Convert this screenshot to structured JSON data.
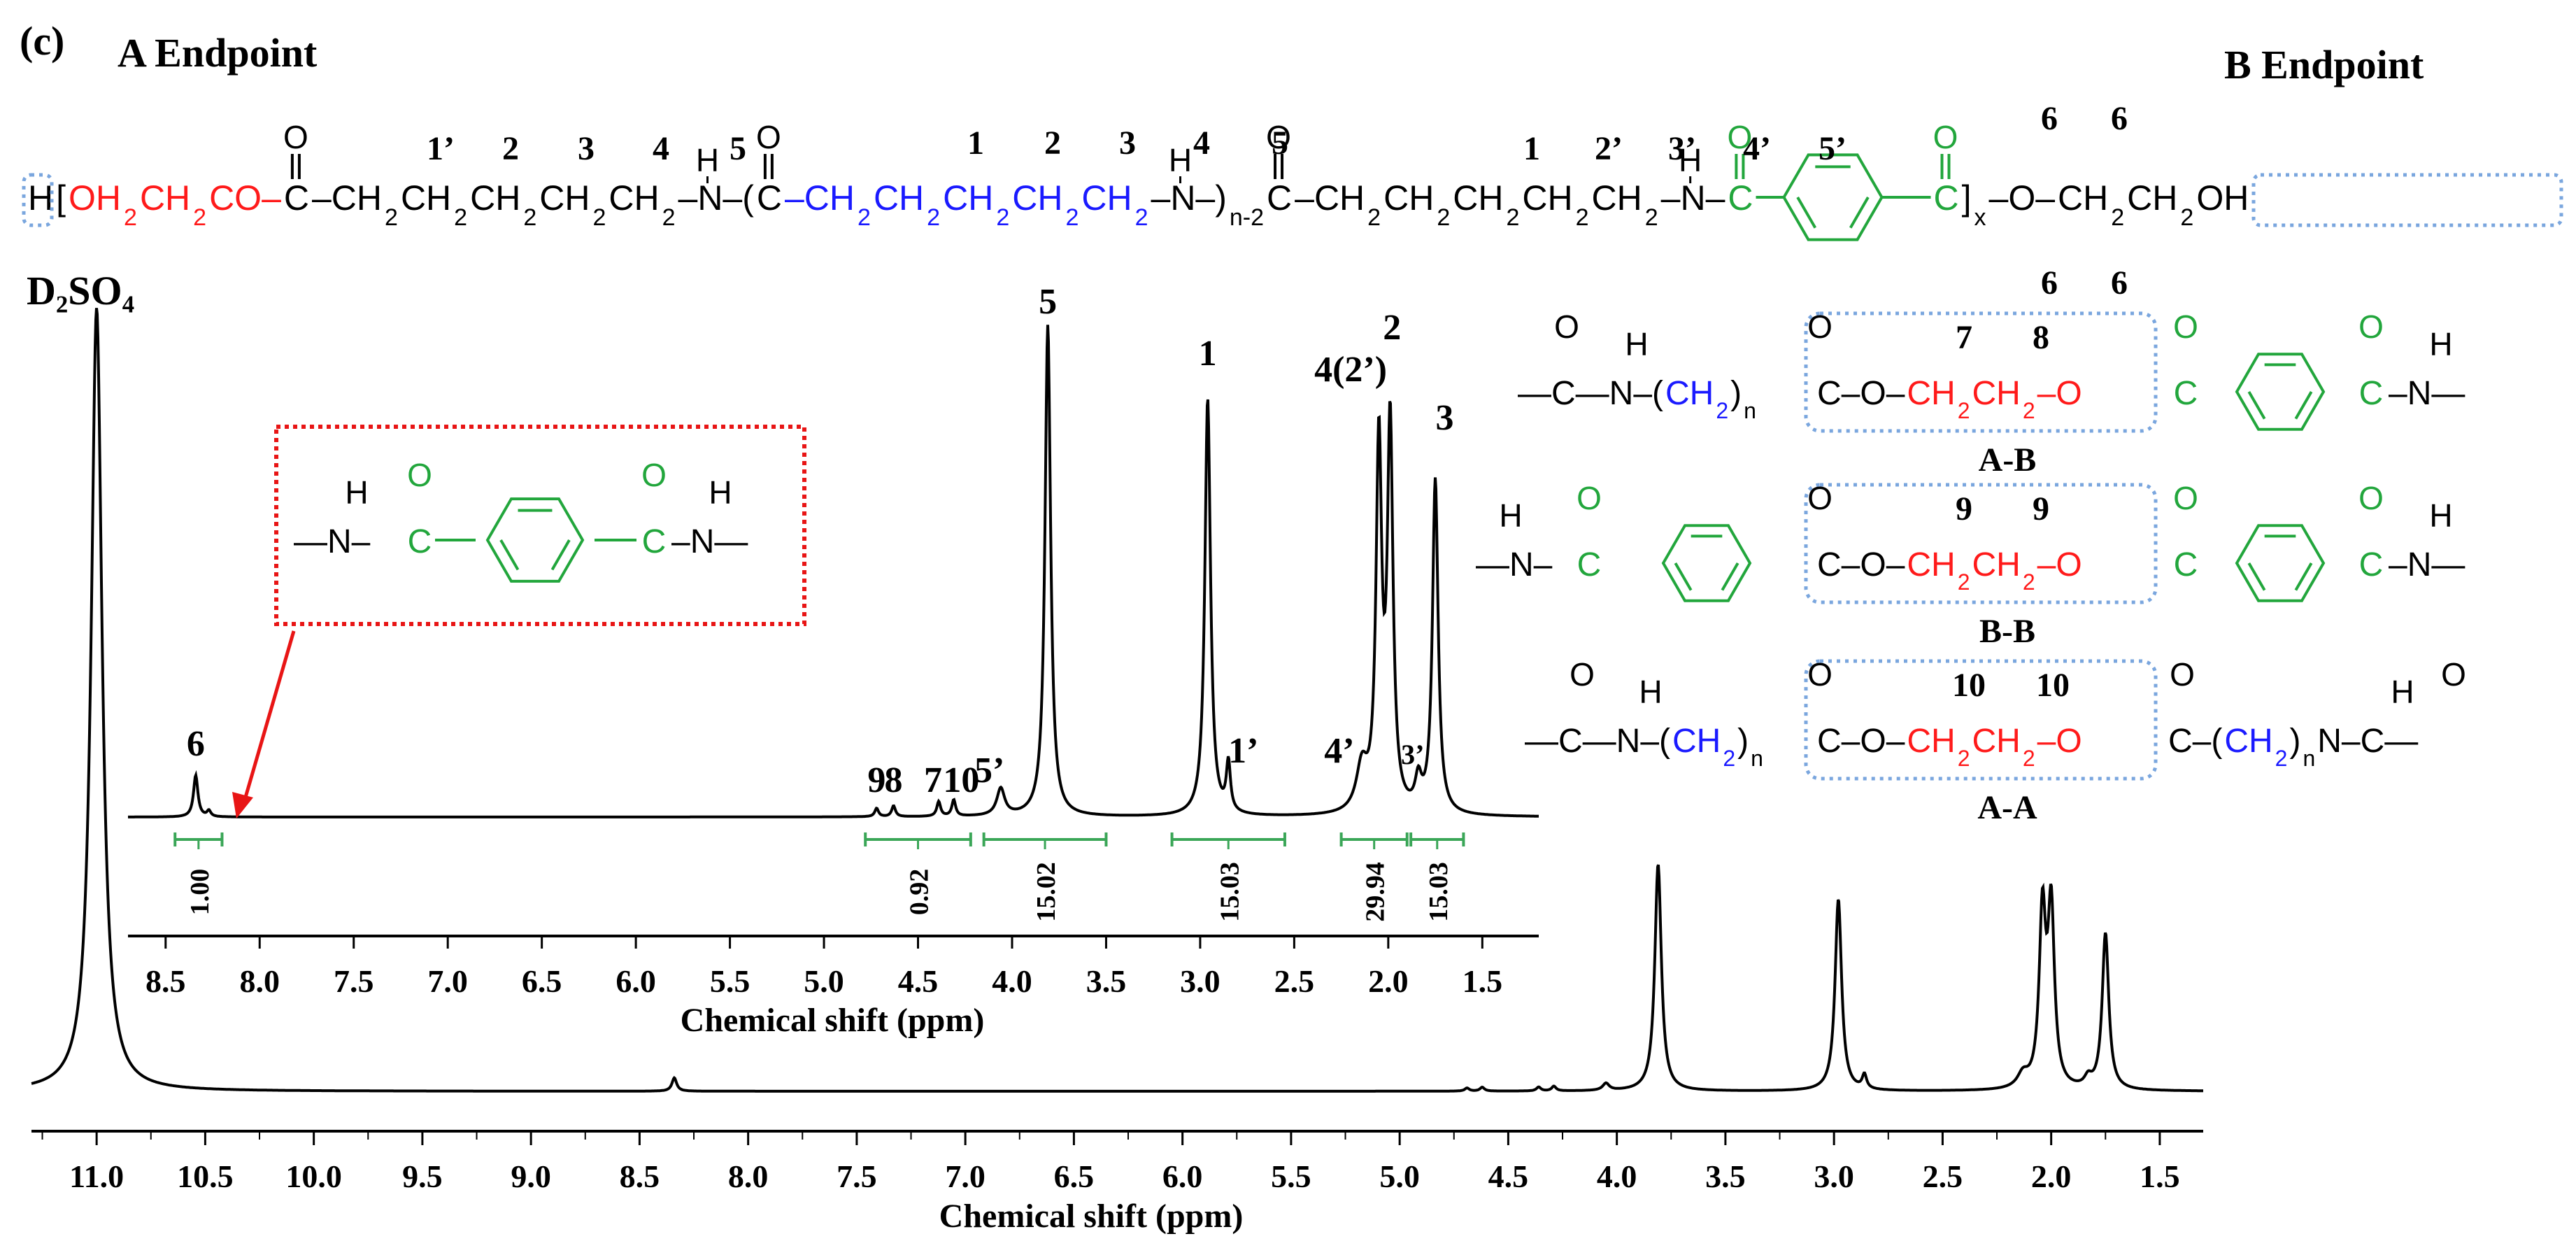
{
  "panel": {
    "label": "(c)",
    "endpoint_a": "A Endpoint",
    "endpoint_b": "B Endpoint"
  },
  "colors": {
    "spectrum": "#000000",
    "integral": "#3aa657",
    "ester": "#ff1a1a",
    "aliphatic": "#1a1aff",
    "aromatic": "#22a63c",
    "endgroup_box": "#7aa6de",
    "highlight_box": "#e81515",
    "arrow": "#e81515"
  },
  "formula": {
    "row": [
      {
        "t": "H",
        "c": "k"
      },
      {
        "t": "[",
        "c": "k"
      },
      {
        "t": "OH",
        "c": "r"
      },
      {
        "t": "2",
        "c": "r",
        "sub": true
      },
      {
        "t": "CH",
        "c": "r"
      },
      {
        "t": "2",
        "c": "r",
        "sub": true
      },
      {
        "t": "CO–",
        "c": "r"
      },
      {
        "t": "C",
        "c": "k"
      },
      {
        "t": "–CH",
        "c": "k"
      },
      {
        "t": "2",
        "c": "k",
        "sub": true
      },
      {
        "t": "CH",
        "c": "k"
      },
      {
        "t": "2",
        "c": "k",
        "sub": true
      },
      {
        "t": "CH",
        "c": "k"
      },
      {
        "t": "2",
        "c": "k",
        "sub": true
      },
      {
        "t": "CH",
        "c": "k"
      },
      {
        "t": "2",
        "c": "k",
        "sub": true
      },
      {
        "t": "CH",
        "c": "k"
      },
      {
        "t": "2",
        "c": "k",
        "sub": true
      },
      {
        "t": "–N–(",
        "c": "k"
      },
      {
        "t": "C",
        "c": "k"
      },
      {
        "t": "–CH",
        "c": "b"
      },
      {
        "t": "2",
        "c": "b",
        "sub": true
      },
      {
        "t": "CH",
        "c": "b"
      },
      {
        "t": "2",
        "c": "b",
        "sub": true
      },
      {
        "t": "CH",
        "c": "b"
      },
      {
        "t": "2",
        "c": "b",
        "sub": true
      },
      {
        "t": "CH",
        "c": "b"
      },
      {
        "t": "2",
        "c": "b",
        "sub": true
      },
      {
        "t": "CH",
        "c": "b"
      },
      {
        "t": "2",
        "c": "b",
        "sub": true
      },
      {
        "t": "–N–)",
        "c": "k"
      },
      {
        "t": "n-2",
        "c": "k",
        "sub": true
      },
      {
        "t": "C",
        "c": "k"
      },
      {
        "t": "–CH",
        "c": "k"
      },
      {
        "t": "2",
        "c": "k",
        "sub": true
      },
      {
        "t": "CH",
        "c": "k"
      },
      {
        "t": "2",
        "c": "k",
        "sub": true
      },
      {
        "t": "CH",
        "c": "k"
      },
      {
        "t": "2",
        "c": "k",
        "sub": true
      },
      {
        "t": "CH",
        "c": "k"
      },
      {
        "t": "2",
        "c": "k",
        "sub": true
      },
      {
        "t": "CH",
        "c": "k"
      },
      {
        "t": "2",
        "c": "k",
        "sub": true
      },
      {
        "t": "–N–",
        "c": "k"
      },
      {
        "t": "C",
        "c": "g"
      }
    ],
    "tail": [
      {
        "t": "C",
        "c": "g"
      },
      {
        "t": "]",
        "c": "k"
      },
      {
        "t": "x",
        "c": "k",
        "sub": true
      },
      {
        "t": "–O–",
        "c": "k"
      },
      {
        "t": "CH",
        "c": "k"
      },
      {
        "t": "2",
        "c": "k",
        "sub": true
      },
      {
        "t": "CH",
        "c": "k"
      },
      {
        "t": "2",
        "c": "k",
        "sub": true
      },
      {
        "t": "OH",
        "c": "k"
      }
    ],
    "o_label": "O",
    "h_label": "H",
    "numbers": [
      "1’",
      "2",
      "3",
      "4",
      "5",
      "1",
      "2",
      "3",
      "4",
      "5",
      "1",
      "2’",
      "3’",
      "4’",
      "5’",
      "6",
      "6",
      "6",
      "6"
    ]
  },
  "solvent_label": "D₂SO₄",
  "structures": [
    {
      "name": "A-B",
      "numbers": [
        "7",
        "8"
      ]
    },
    {
      "name": "B-B",
      "numbers": [
        "9",
        "9"
      ]
    },
    {
      "name": "A-A",
      "numbers": [
        "10",
        "10"
      ]
    }
  ],
  "amide_motif": {
    "h": "H",
    "o": "O"
  },
  "chart_data": [
    {
      "type": "line",
      "role": "main spectrum",
      "xlabel": "Chemical shift (ppm)",
      "xlim": [
        11.3,
        1.3
      ],
      "xticks": [
        "11.0",
        "10.5",
        "10.0",
        "9.5",
        "9.0",
        "8.5",
        "8.0",
        "7.5",
        "7.0",
        "6.5",
        "6.0",
        "5.5",
        "5.0",
        "4.5",
        "4.0",
        "3.5",
        "3.0",
        "2.5",
        "2.0",
        "1.5"
      ],
      "peaks": [
        {
          "shift": 11.0,
          "height": 1.0,
          "width": 0.03
        },
        {
          "shift": 8.34,
          "height": 0.017,
          "width": 0.013
        },
        {
          "shift": 4.69,
          "height": 0.004,
          "width": 0.012
        },
        {
          "shift": 4.62,
          "height": 0.005,
          "width": 0.012
        },
        {
          "shift": 4.36,
          "height": 0.005,
          "width": 0.012
        },
        {
          "shift": 4.29,
          "height": 0.006,
          "width": 0.012
        },
        {
          "shift": 4.05,
          "height": 0.009,
          "width": 0.018
        },
        {
          "shift": 3.81,
          "height": 0.29,
          "width": 0.018
        },
        {
          "shift": 2.98,
          "height": 0.245,
          "width": 0.018
        },
        {
          "shift": 2.86,
          "height": 0.018,
          "width": 0.012
        },
        {
          "shift": 2.13,
          "height": 0.017,
          "width": 0.03
        },
        {
          "shift": 2.04,
          "height": 0.22,
          "width": 0.018
        },
        {
          "shift": 2.0,
          "height": 0.225,
          "width": 0.018
        },
        {
          "shift": 1.83,
          "height": 0.012,
          "width": 0.02
        },
        {
          "shift": 1.75,
          "height": 0.2,
          "width": 0.018
        }
      ]
    },
    {
      "type": "line",
      "role": "inset spectrum",
      "xlabel": "Chemical shift (ppm)",
      "xlim": [
        8.7,
        1.2
      ],
      "xticks": [
        "8.5",
        "8.0",
        "7.5",
        "7.0",
        "6.5",
        "6.0",
        "5.5",
        "5.0",
        "4.5",
        "4.0",
        "3.5",
        "3.0",
        "2.5",
        "2.0",
        "1.5"
      ],
      "peaks": [
        {
          "shift": 8.34,
          "height": 0.085,
          "width": 0.014,
          "label": "6"
        },
        {
          "shift": 8.27,
          "height": 0.012,
          "width": 0.012
        },
        {
          "shift": 4.72,
          "height": 0.017,
          "width": 0.012,
          "label": "9"
        },
        {
          "shift": 4.63,
          "height": 0.022,
          "width": 0.012,
          "label": "8"
        },
        {
          "shift": 4.39,
          "height": 0.03,
          "width": 0.012,
          "label": "7"
        },
        {
          "shift": 4.31,
          "height": 0.033,
          "width": 0.012,
          "label": "10"
        },
        {
          "shift": 4.06,
          "height": 0.055,
          "width": 0.025,
          "label": "5’"
        },
        {
          "shift": 3.81,
          "height": 1.0,
          "width": 0.018,
          "label": "5"
        },
        {
          "shift": 2.96,
          "height": 0.85,
          "width": 0.018,
          "label": "1"
        },
        {
          "shift": 2.85,
          "height": 0.1,
          "width": 0.013,
          "label": "1’"
        },
        {
          "shift": 2.14,
          "height": 0.09,
          "width": 0.035,
          "label": "4’"
        },
        {
          "shift": 2.05,
          "height": 0.74,
          "width": 0.018,
          "label": "4(2’)"
        },
        {
          "shift": 1.99,
          "height": 0.78,
          "width": 0.018,
          "label": "2"
        },
        {
          "shift": 1.84,
          "height": 0.06,
          "width": 0.02,
          "label": "3’"
        },
        {
          "shift": 1.75,
          "height": 0.68,
          "width": 0.018,
          "label": "3"
        }
      ],
      "integrals": [
        {
          "from": 8.45,
          "to": 8.2,
          "value": "1.00"
        },
        {
          "from": 4.78,
          "to": 4.22,
          "value": "0.92"
        },
        {
          "from": 4.15,
          "to": 3.5,
          "value": "15.02"
        },
        {
          "from": 3.15,
          "to": 2.55,
          "value": "15.03"
        },
        {
          "from": 2.25,
          "to": 1.9,
          "value": "29.94"
        },
        {
          "from": 1.88,
          "to": 1.6,
          "value": "15.03"
        }
      ]
    }
  ]
}
